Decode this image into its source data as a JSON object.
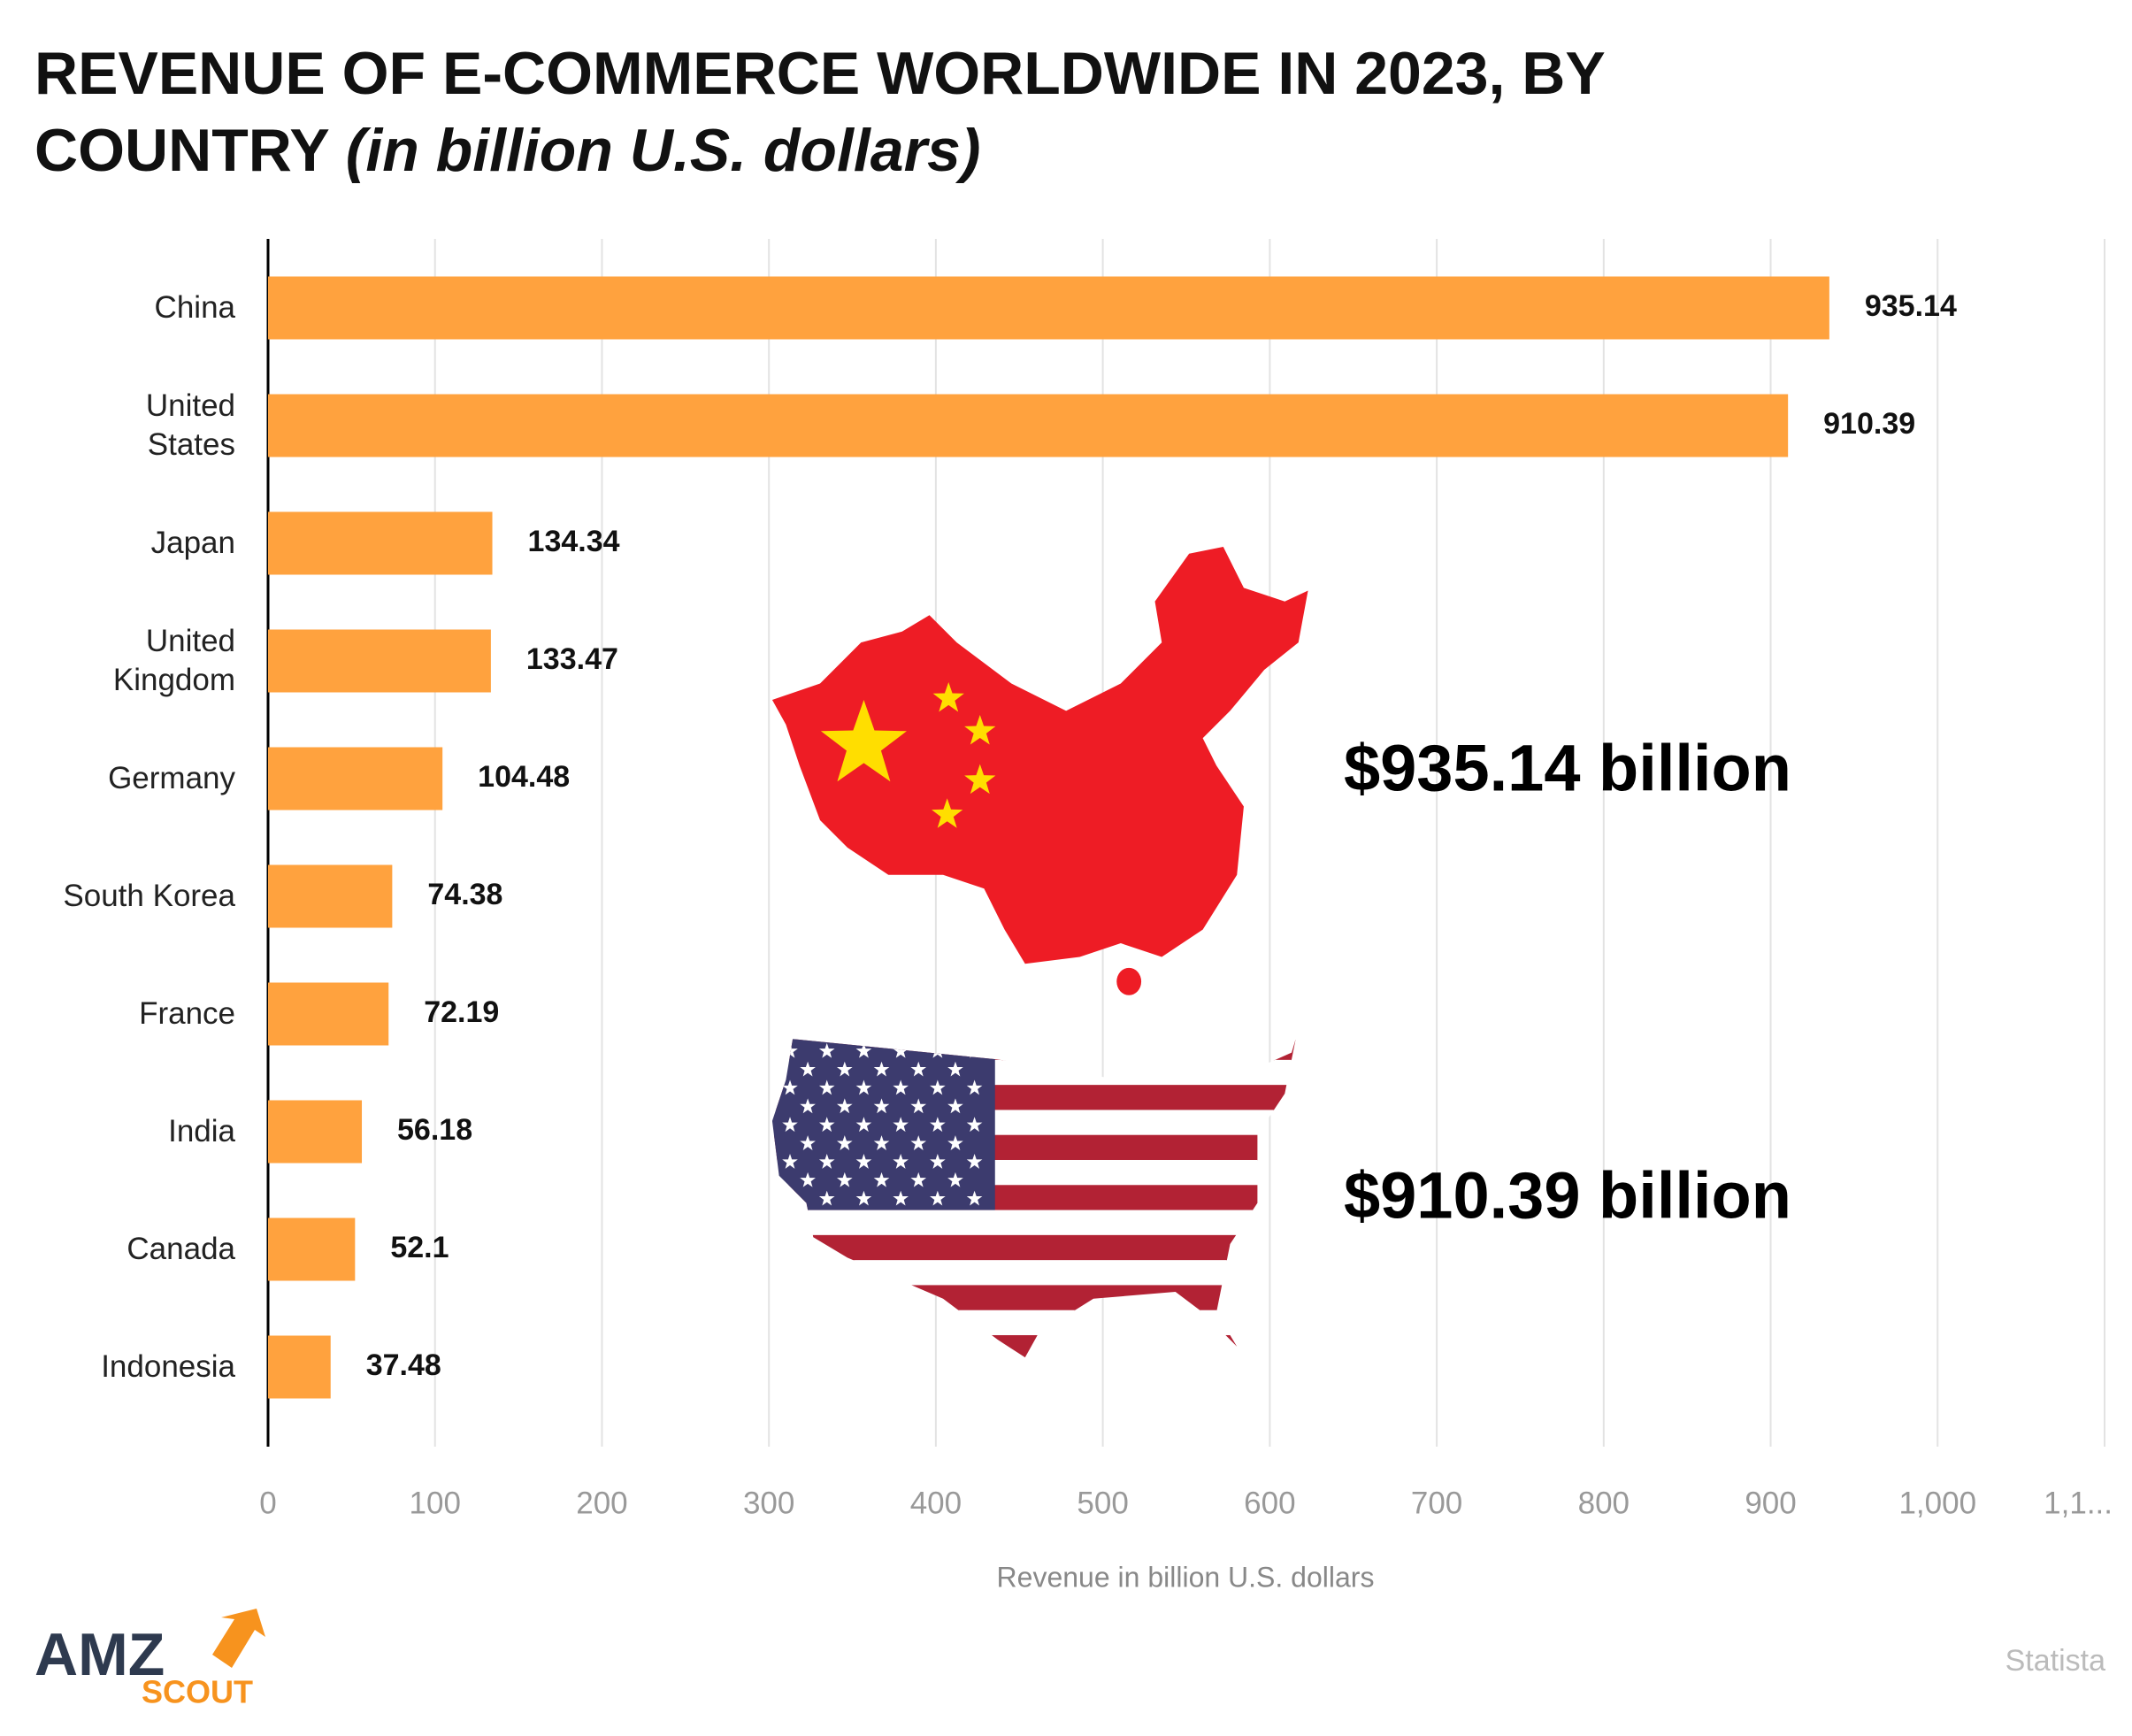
{
  "chart_data": {
    "type": "bar",
    "orientation": "horizontal",
    "title": "REVENUE OF E-COMMERCE WORLDWIDE IN 2023, BY COUNTRY",
    "title_note": "(in billion U.S. dollars)",
    "categories": [
      "China",
      "United\nStates",
      "Japan",
      "United\nKingdom",
      "Germany",
      "South Korea",
      "France",
      "India",
      "Canada",
      "Indonesia"
    ],
    "values": [
      935.14,
      910.39,
      134.34,
      133.47,
      104.48,
      74.38,
      72.19,
      56.18,
      52.1,
      37.48
    ],
    "color": "#FFA23E",
    "xlim": [
      0,
      1100
    ],
    "xticks": [
      0,
      100,
      200,
      300,
      400,
      500,
      600,
      700,
      800,
      900,
      {
        "value": 1000,
        "label": "1,000"
      },
      {
        "value": 1100,
        "label": "1,1..."
      }
    ],
    "xlabel": "Revenue in billion U.S. dollars",
    "grid": true,
    "annotations": [
      "$935.14 billion",
      "$910.39 billion"
    ],
    "source": "Statista",
    "logo": [
      "AMZ",
      "SCOUT"
    ]
  }
}
